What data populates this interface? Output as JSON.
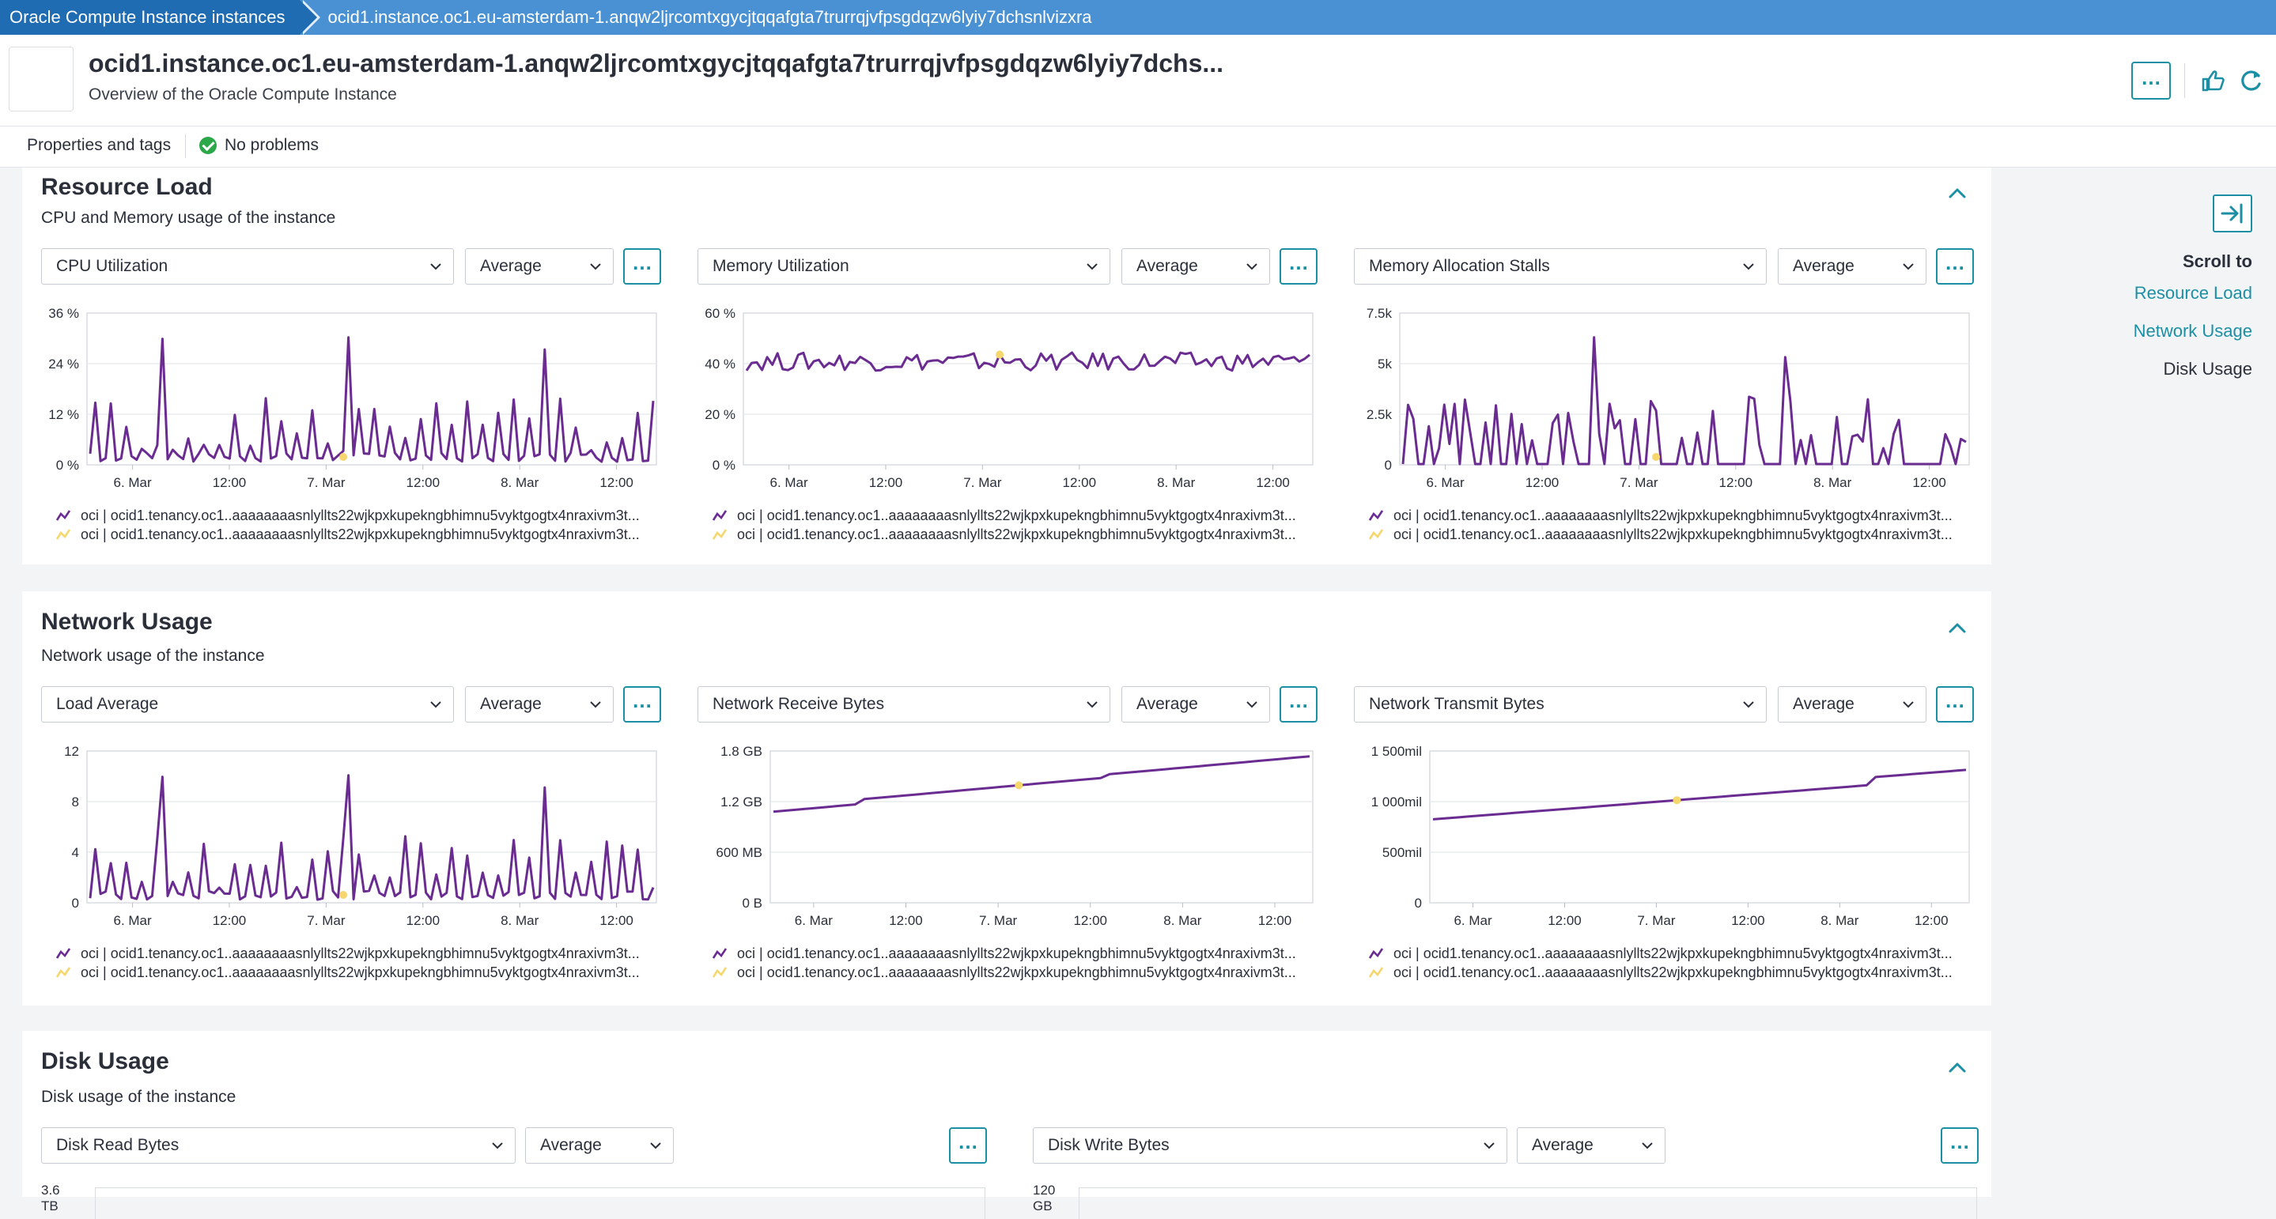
{
  "breadcrumb": {
    "parent": "Oracle Compute Instance instances",
    "current": "ocid1.instance.oc1.eu-amsterdam-1.anqw2ljrcomtxgycjtqqafgta7trurrqjvfpsgdqzw6lyiy7dchsnlvizxra"
  },
  "header": {
    "title": "ocid1.instance.oc1.eu-amsterdam-1.anqw2ljrcomtxgycjtqqafgta7trurrqjvfpsgdqzw6lyiy7dchs...",
    "subtitle": "Overview of the Oracle Compute Instance",
    "more_label": "…",
    "icons": [
      "thumbs-up-icon",
      "refresh-icon"
    ]
  },
  "tabs": {
    "properties": "Properties and tags",
    "problems": "No problems"
  },
  "sidebar": {
    "scroll_to": "Scroll to",
    "links": [
      "Resource Load",
      "Network Usage",
      "Disk Usage"
    ]
  },
  "colors": {
    "accent": "#1b8fa4",
    "series": "#6a2c91",
    "point": "#f5d76e",
    "ok": "#2ca84a",
    "crumb": "#1f6cb3"
  },
  "legend_text": "oci | ocid1.tenancy.oc1..aaaaaaaasnlyllts22wjkpxkupekngbhimnu5vyktgogtx4nraxivm3t...",
  "aggregation_label": "Average",
  "sections": [
    {
      "title": "Resource Load",
      "subtitle": "CPU and Memory usage of the instance",
      "panels": [
        {
          "metric": "CPU Utilization",
          "yticks": [
            "36 %",
            "24 %",
            "12 %",
            "0 %"
          ],
          "xticks": [
            "6. Mar",
            "12:00",
            "7. Mar",
            "12:00",
            "8. Mar",
            "12:00"
          ]
        },
        {
          "metric": "Memory Utilization",
          "yticks": [
            "60 %",
            "40 %",
            "20 %",
            "0 %"
          ],
          "xticks": [
            "6. Mar",
            "12:00",
            "7. Mar",
            "12:00",
            "8. Mar",
            "12:00"
          ]
        },
        {
          "metric": "Memory Allocation Stalls",
          "yticks": [
            "7.5k",
            "5k",
            "2.5k",
            "0"
          ],
          "xticks": [
            "6. Mar",
            "12:00",
            "7. Mar",
            "12:00",
            "8. Mar",
            "12:00"
          ]
        }
      ]
    },
    {
      "title": "Network Usage",
      "subtitle": "Network usage of the instance",
      "panels": [
        {
          "metric": "Load Average",
          "yticks": [
            "12",
            "8",
            "4",
            "0"
          ],
          "xticks": [
            "6. Mar",
            "12:00",
            "7. Mar",
            "12:00",
            "8. Mar",
            "12:00"
          ]
        },
        {
          "metric": "Network Receive Bytes",
          "yticks": [
            "1.8 GB",
            "1.2 GB",
            "600 MB",
            "0 B"
          ],
          "xticks": [
            "6. Mar",
            "12:00",
            "7. Mar",
            "12:00",
            "8. Mar",
            "12:00"
          ]
        },
        {
          "metric": "Network Transmit Bytes",
          "yticks": [
            "1 500mil",
            "1 000mil",
            "500mil",
            "0"
          ],
          "xticks": [
            "6. Mar",
            "12:00",
            "7. Mar",
            "12:00",
            "8. Mar",
            "12:00"
          ]
        }
      ]
    },
    {
      "title": "Disk Usage",
      "subtitle": "Disk usage of the instance",
      "panels": [
        {
          "metric": "Disk Read Bytes",
          "ytop": "3.6 TB"
        },
        {
          "metric": "Disk Write Bytes",
          "ytop": "120 GB"
        }
      ]
    }
  ]
}
